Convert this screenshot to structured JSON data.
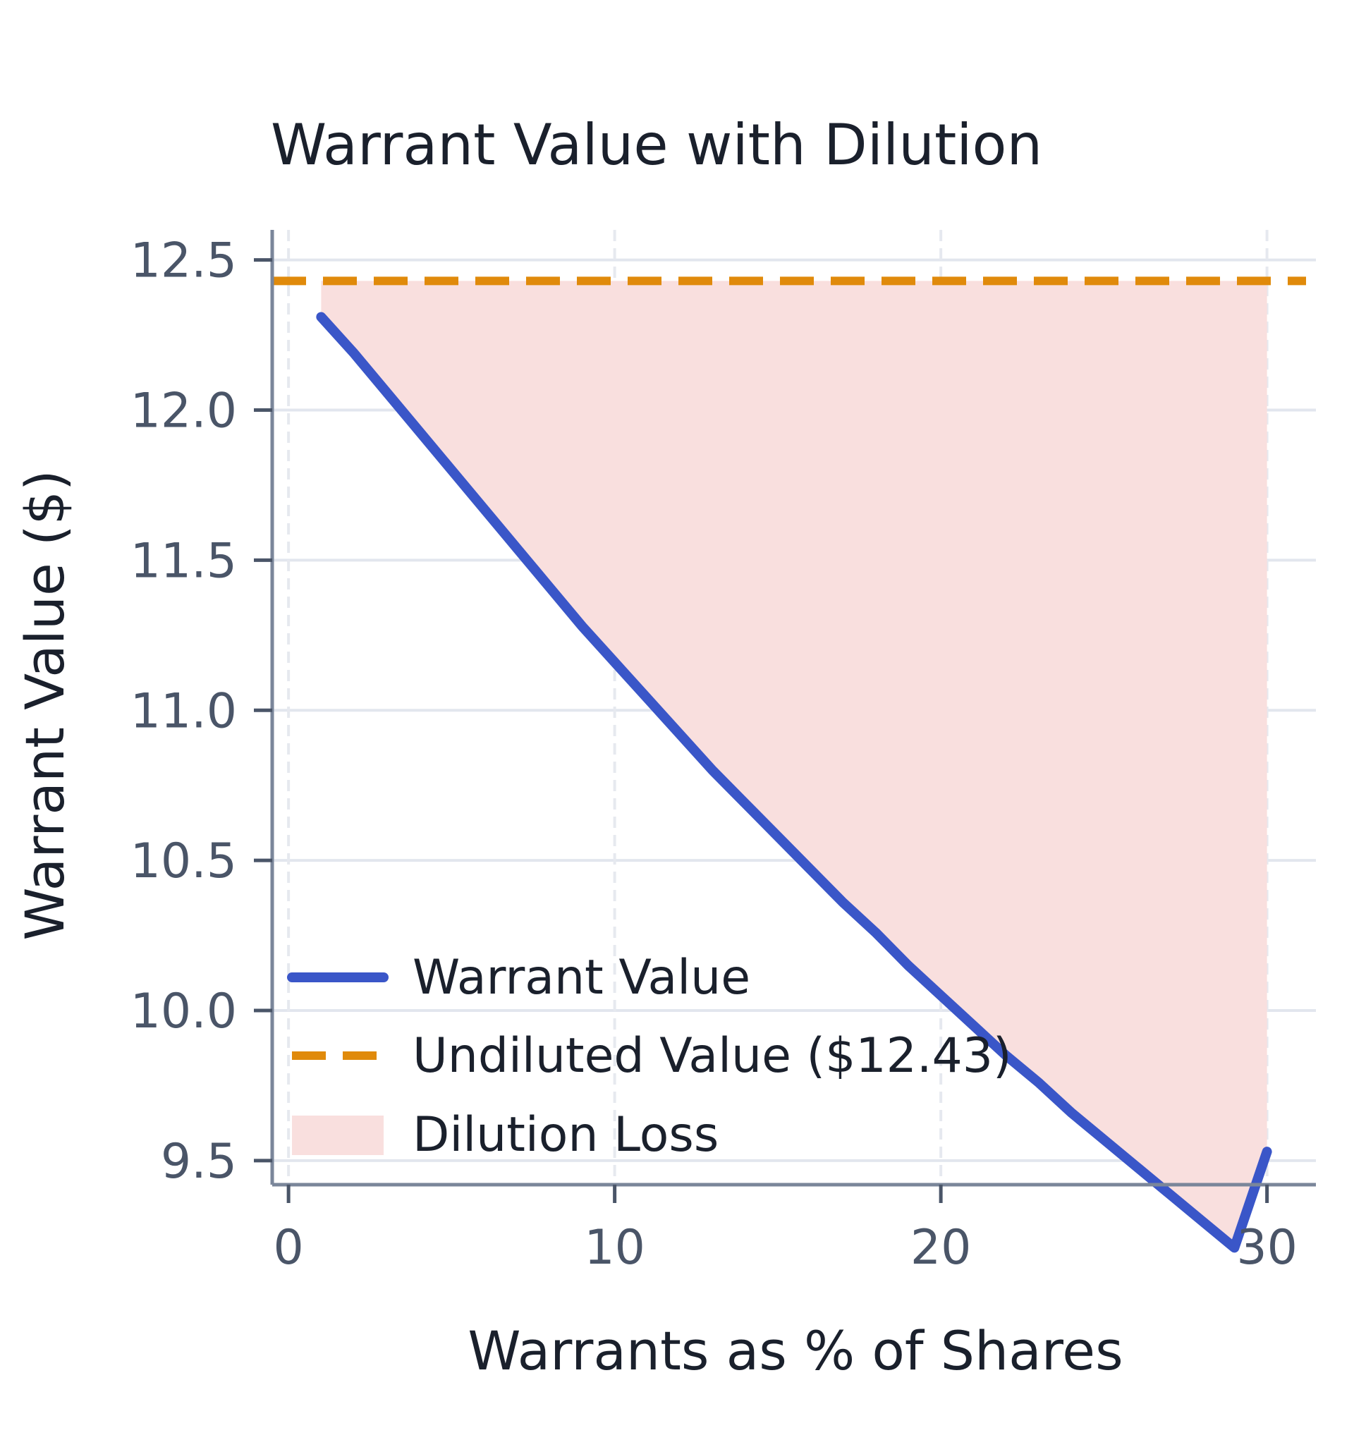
{
  "chart_data": {
    "type": "line",
    "title": "Warrant Value with Dilution",
    "xlabel": "Warrants as % of Shares",
    "ylabel": "Warrant Value ($)",
    "xlim": [
      -0.5,
      31.5
    ],
    "ylim": [
      9.42,
      12.6
    ],
    "xticks": [
      0,
      10,
      20,
      30
    ],
    "xtick_labels": [
      "0",
      "10",
      "20",
      "30"
    ],
    "yticks": [
      9.5,
      10.0,
      10.5,
      11.0,
      11.5,
      12.0,
      12.5
    ],
    "ytick_labels": [
      "9.5",
      "10.0",
      "10.5",
      "11.0",
      "11.5",
      "12.0",
      "12.5"
    ],
    "grid": true,
    "legend_position": "lower-left",
    "undiluted_value": 12.43,
    "series": [
      {
        "name": "Warrant Value",
        "color": "#3a56c8",
        "style": "solid",
        "x": [
          1,
          2,
          3,
          4,
          5,
          6,
          7,
          8,
          9,
          10,
          11,
          12,
          13,
          14,
          15,
          16,
          17,
          18,
          19,
          20,
          21,
          22,
          23,
          24,
          25,
          26,
          27,
          28,
          29,
          30
        ],
        "y": [
          12.31,
          12.19,
          12.06,
          11.93,
          11.8,
          11.67,
          11.54,
          11.41,
          11.28,
          11.16,
          11.04,
          10.92,
          10.8,
          10.69,
          10.58,
          10.47,
          10.36,
          10.26,
          10.15,
          10.05,
          9.95,
          9.85,
          9.76,
          9.66,
          9.57,
          9.48,
          9.39,
          9.3,
          9.21,
          9.53
        ]
      },
      {
        "name": "Undiluted Value ($12.43)",
        "color": "#e08a0b",
        "style": "dashed",
        "value": 12.43
      }
    ],
    "fill": {
      "name": "Dilution Loss",
      "color": "#f9dfde"
    }
  }
}
